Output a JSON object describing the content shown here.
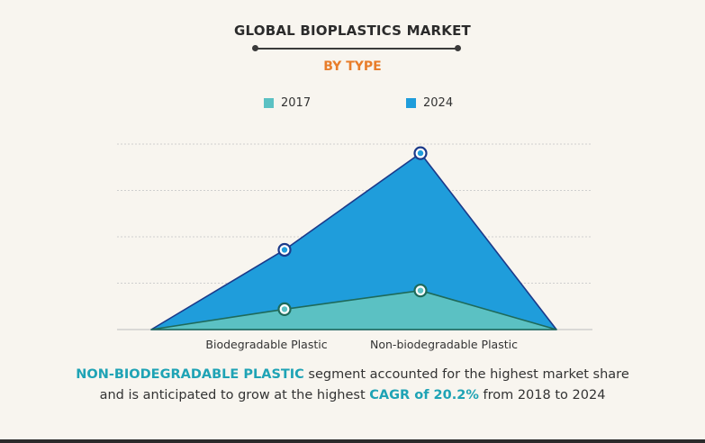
{
  "header": {
    "title": "GLOBAL BIOPLASTICS MARKET",
    "subtitle": "BY TYPE"
  },
  "colors": {
    "series_2017": "#5bc1c3",
    "series_2024": "#1f9ddb",
    "outline_2024": "#1b3a8a",
    "outline_2017": "#1e6a5a",
    "accent": "#e87d2a",
    "highlight": "#1fa3b5"
  },
  "chart_data": {
    "type": "area",
    "categories": [
      "Biodegradable Plastic",
      "Non-biodegradable Plastic"
    ],
    "series": [
      {
        "name": "2017",
        "values": [
          1.2,
          2.3
        ]
      },
      {
        "name": "2024",
        "values": [
          4.7,
          10.4
        ]
      }
    ],
    "ylim": [
      0,
      12
    ],
    "grid": true,
    "gridlines": 4,
    "legend_placement": "top",
    "xlabel": "",
    "ylabel": ""
  },
  "caption": {
    "part1": "NON-BIODEGRADABLE PLASTIC",
    "part2": " segment accounted for the highest market share",
    "part3": "and is anticipated to grow at the highest ",
    "part4": "CAGR of 20.2%",
    "part5": " from 2018 to 2024"
  }
}
